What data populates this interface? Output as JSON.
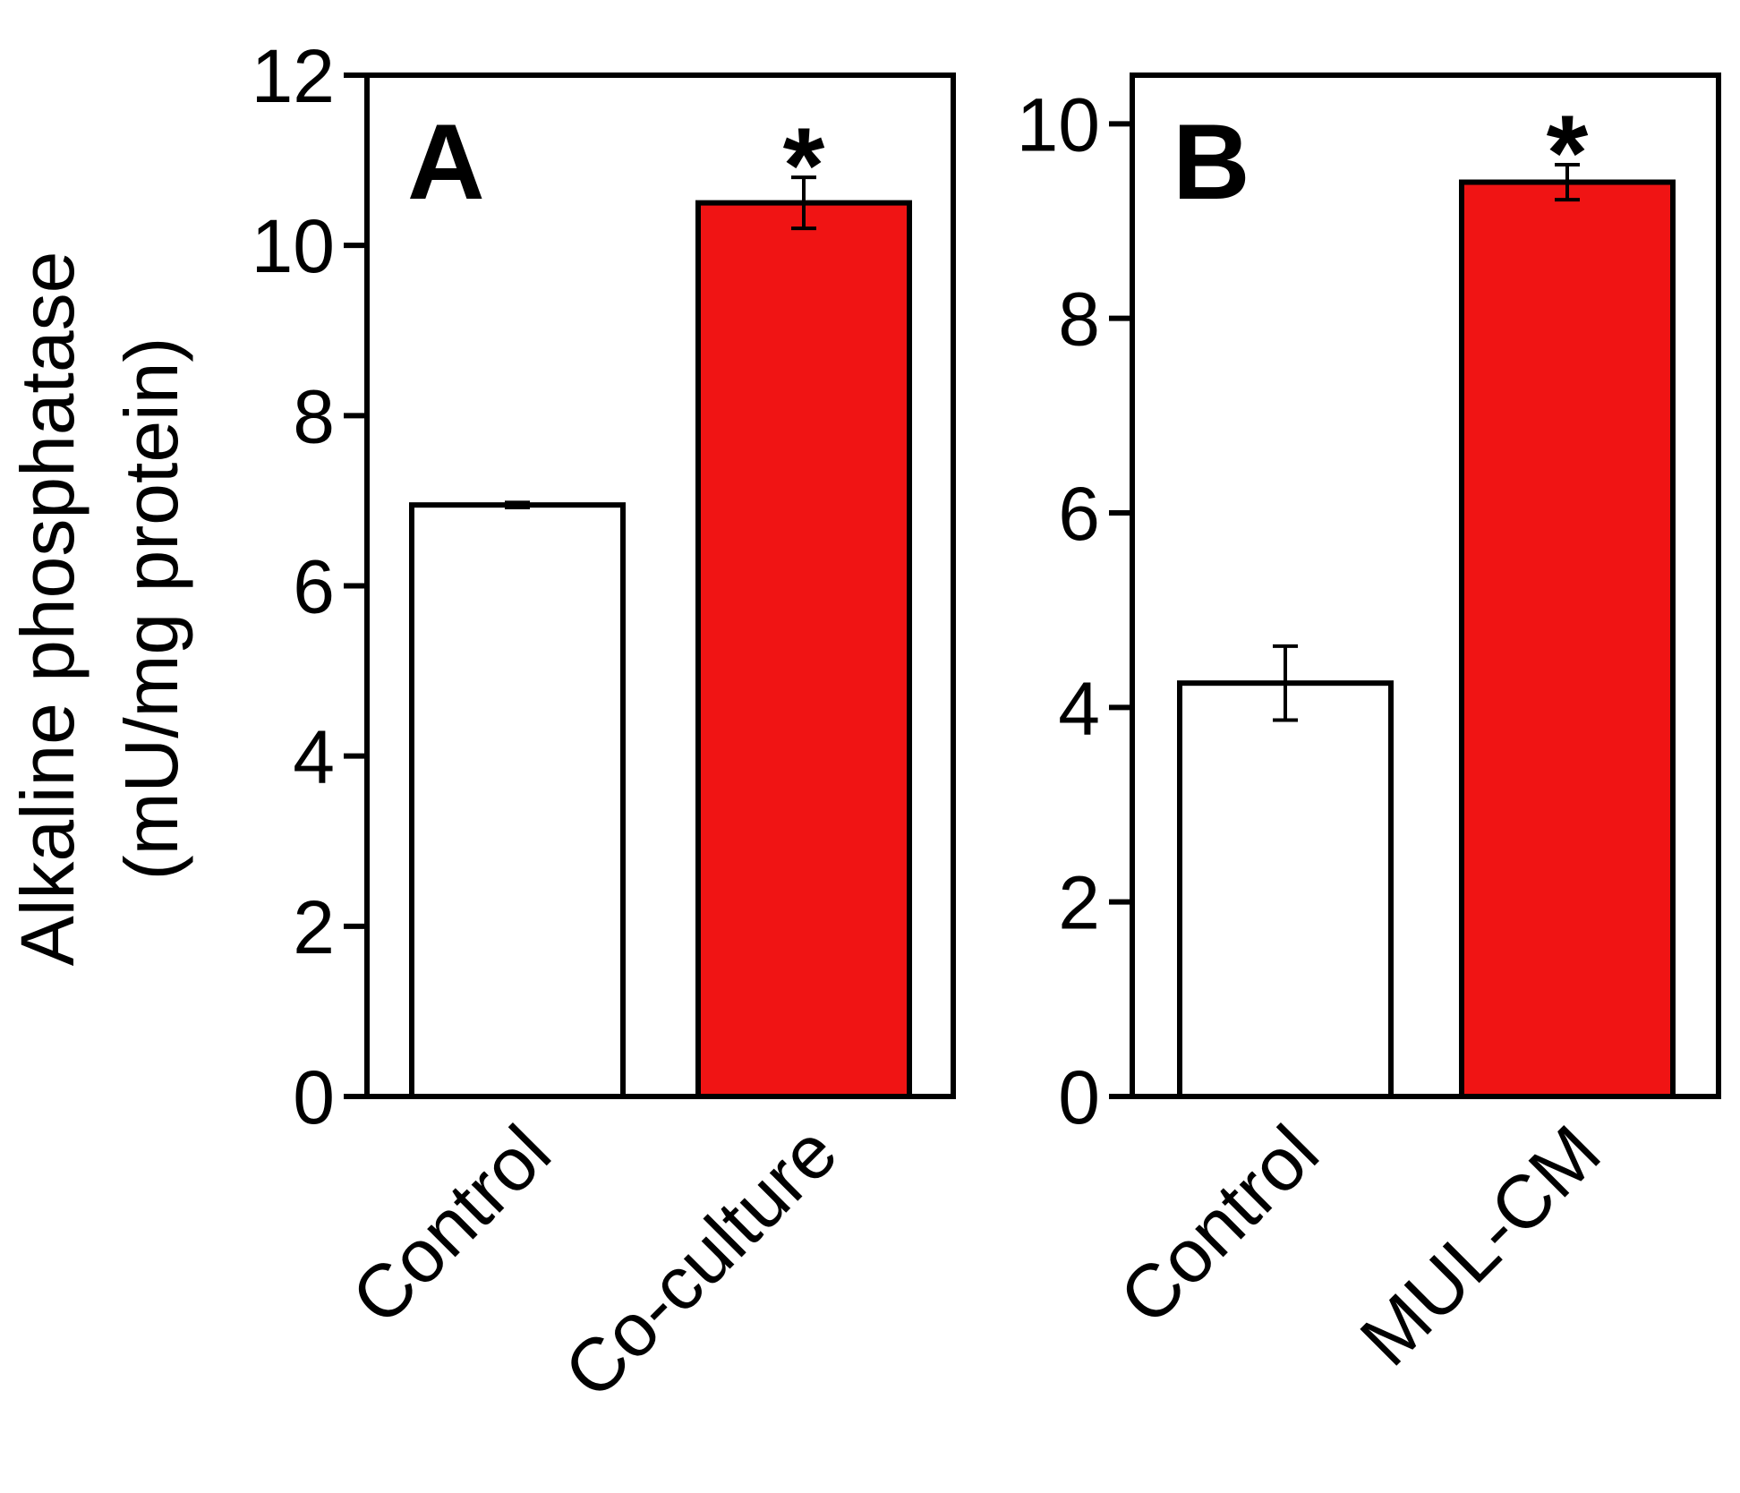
{
  "y_axis_label": {
    "line1": "Alkaline phosphatase",
    "line2": "(mU/mg protein)"
  },
  "chart_data": [
    {
      "type": "bar",
      "panel_label": "A",
      "categories": [
        "Control",
        "Co-culture"
      ],
      "values": [
        6.95,
        10.5
      ],
      "errors": [
        0.03,
        0.3
      ],
      "significance": [
        "",
        "*"
      ],
      "bar_colors": [
        "#ffffff",
        "#f01414"
      ],
      "ylim": [
        0,
        12
      ],
      "yticks": [
        0,
        2,
        4,
        6,
        8,
        10,
        12
      ],
      "ytick_labels": [
        "0",
        "2",
        "4",
        "6",
        "8",
        "10",
        "12"
      ]
    },
    {
      "type": "bar",
      "panel_label": "B",
      "categories": [
        "Control",
        "MUL-CM"
      ],
      "values": [
        4.25,
        9.4
      ],
      "errors": [
        0.38,
        0.18
      ],
      "significance": [
        "",
        "*"
      ],
      "bar_colors": [
        "#ffffff",
        "#f01414"
      ],
      "ylim": [
        0,
        10.5
      ],
      "yticks": [
        0,
        2,
        4,
        6,
        8,
        10
      ],
      "ytick_labels": [
        "0",
        "2",
        "4",
        "6",
        "8",
        "10"
      ]
    }
  ]
}
